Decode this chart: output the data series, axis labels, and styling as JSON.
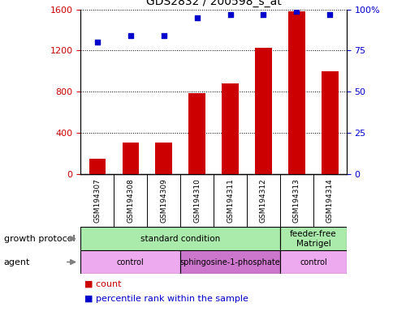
{
  "title": "GDS2832 / 200598_s_at",
  "samples": [
    "GSM194307",
    "GSM194308",
    "GSM194309",
    "GSM194310",
    "GSM194311",
    "GSM194312",
    "GSM194313",
    "GSM194314"
  ],
  "counts": [
    150,
    310,
    305,
    790,
    880,
    1230,
    1580,
    1000
  ],
  "percentile_ranks": [
    80,
    84,
    84,
    95,
    97,
    97,
    99,
    97
  ],
  "ylim_left": [
    0,
    1600
  ],
  "ylim_right": [
    0,
    100
  ],
  "yticks_left": [
    0,
    400,
    800,
    1200,
    1600
  ],
  "yticks_right": [
    0,
    25,
    50,
    75,
    100
  ],
  "bar_color": "#cc0000",
  "dot_color": "#0000cc",
  "growth_protocol_groups": [
    {
      "label": "standard condition",
      "start": 0,
      "end": 6,
      "color": "#aaeaaa"
    },
    {
      "label": "feeder-free\nMatrigel",
      "start": 6,
      "end": 8,
      "color": "#aaeaaa"
    }
  ],
  "agent_groups": [
    {
      "label": "control",
      "start": 0,
      "end": 3,
      "color": "#eeaaee"
    },
    {
      "label": "sphingosine-1-phosphate",
      "start": 3,
      "end": 6,
      "color": "#cc77cc"
    },
    {
      "label": "control",
      "start": 6,
      "end": 8,
      "color": "#eeaaee"
    }
  ],
  "legend_count_color": "#cc0000",
  "legend_pct_color": "#0000cc",
  "label_row1": "growth protocol",
  "label_row2": "agent",
  "background_color": "#ffffff",
  "tick_label_color_left": "#cc0000",
  "tick_label_color_right": "#0000cc"
}
